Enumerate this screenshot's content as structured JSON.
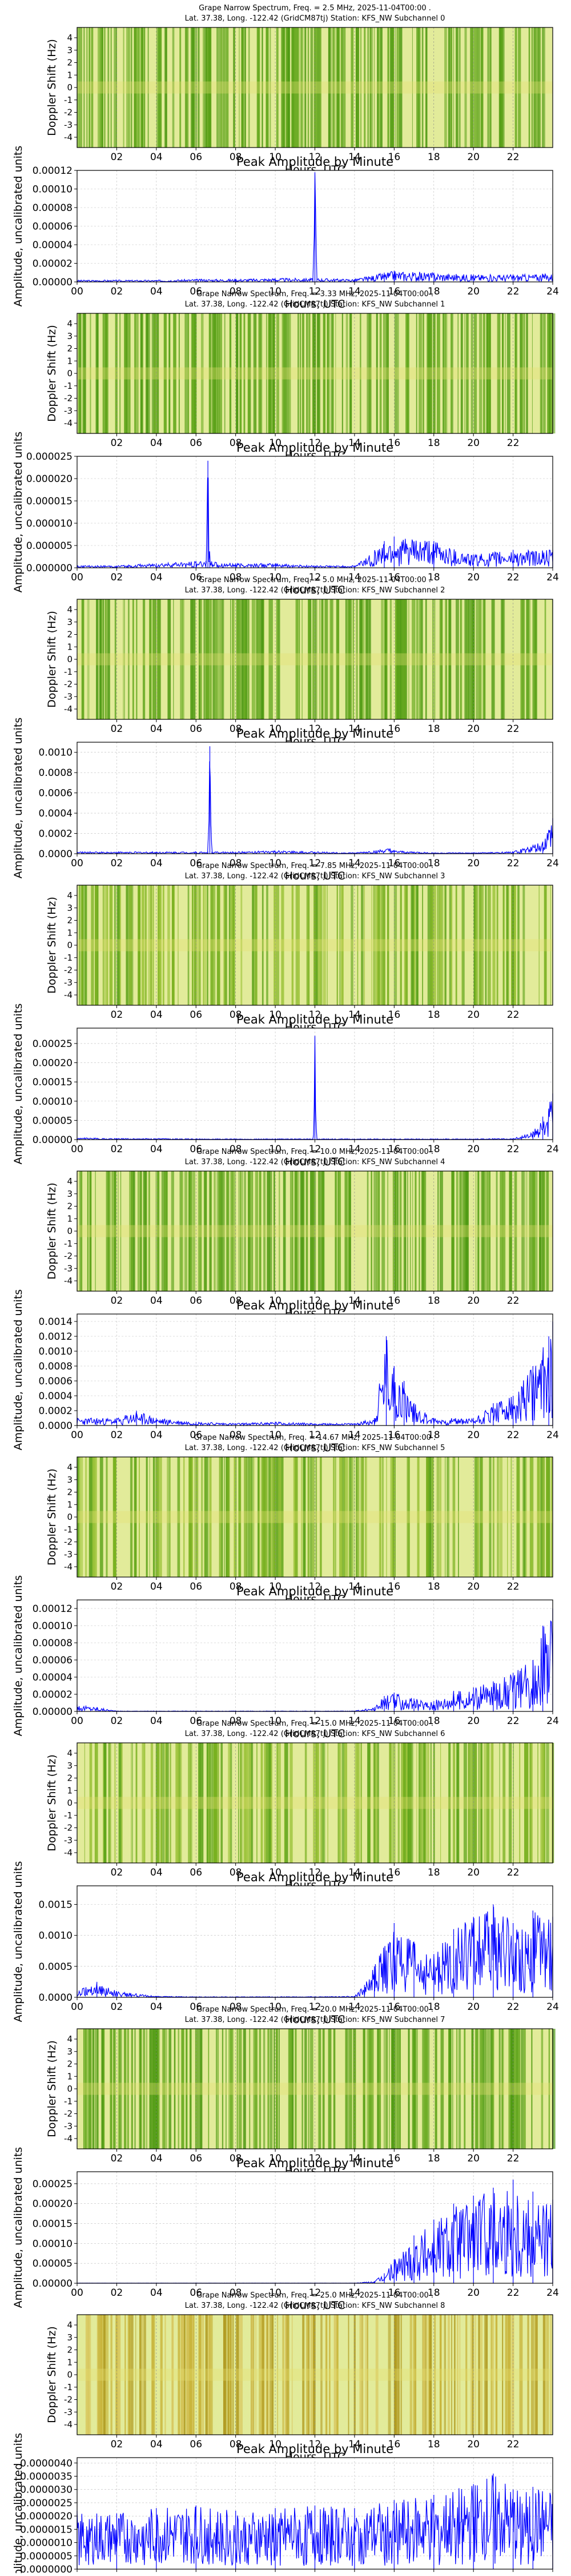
{
  "figure": {
    "shared": {
      "spectrogram_ylabel": "Doppler Shift (Hz)",
      "xlabel": "Hours, UTC",
      "amp_title": "Peak Amplitude by Minute",
      "amp_ylabel": "Amplitude, uncalibrated units",
      "spec_xticks": [
        "02",
        "04",
        "06",
        "08",
        "10",
        "12",
        "14",
        "16",
        "18",
        "20",
        "22"
      ],
      "amp_xticks": [
        "00",
        "02",
        "04",
        "06",
        "08",
        "10",
        "12",
        "14",
        "16",
        "18",
        "20",
        "22",
        "24"
      ],
      "spec_yticks": [
        "4",
        "3",
        "2",
        "1",
        "0",
        "-1",
        "-2",
        "-3",
        "-4"
      ],
      "colors": {
        "spec_green": "#5ba218",
        "spec_yellow": "#e6e070",
        "spec_bg": "#e2eb9a",
        "amp_line": "#0000ff",
        "grid": "#bbbbbb"
      }
    }
  },
  "chart_data": [
    {
      "type": "heatmap",
      "title_line1": "Grape Narrow Spectrum, Freq. = 2.5 MHz, 2025-11-04T00:00 .",
      "title_line2": "Lat.  37.38, Long. -122.42 (GridCM87tj) Station: KFS_NW Subchannel 0",
      "xlabel": "Hours, UTC",
      "ylabel": "Doppler Shift (Hz)",
      "xlim": [
        0,
        24
      ],
      "ylim": [
        -4,
        4
      ],
      "tint": "green"
    },
    {
      "type": "line",
      "title": "Peak Amplitude by Minute",
      "xlabel": "Hours, UTC",
      "ylabel": "Amplitude, uncalibrated units",
      "xlim": [
        0,
        24
      ],
      "ylim": [
        0,
        0.00012
      ],
      "yticks": [
        "0.00000",
        "0.00002",
        "0.00004",
        "0.00006",
        "0.00008",
        "0.00010",
        "0.00012"
      ],
      "x": [
        0,
        2,
        4,
        6,
        8,
        10,
        11.9,
        12,
        12.1,
        14,
        15.5,
        16,
        18,
        20,
        22,
        24
      ],
      "y": [
        2e-06,
        2e-06,
        2e-06,
        3e-06,
        3e-06,
        4e-06,
        4e-06,
        0.000118,
        4e-06,
        3e-06,
        1e-05,
        1.2e-05,
        1e-05,
        8e-06,
        8e-06,
        9e-06
      ]
    },
    {
      "type": "heatmap",
      "title_line1": "Grape Narrow Spectrum, Freq. = 3.33 MHz, 2025-11-04T00:00 .",
      "title_line2": "Lat.  37.38, Long. -122.42 (GridCM87tj) Station: KFS_NW Subchannel 1",
      "xlabel": "Hours, UTC",
      "ylabel": "Doppler Shift (Hz)",
      "xlim": [
        0,
        24
      ],
      "ylim": [
        -4,
        4
      ],
      "tint": "green"
    },
    {
      "type": "line",
      "title": "Peak Amplitude by Minute",
      "xlabel": "Hours, UTC",
      "ylabel": "Amplitude, uncalibrated units",
      "xlim": [
        0,
        24
      ],
      "ylim": [
        0,
        2.5e-05
      ],
      "yticks": [
        "0.000000",
        "0.000005",
        "0.000010",
        "0.000015",
        "0.000020",
        "0.000025"
      ],
      "x": [
        0,
        2,
        4,
        6,
        6.5,
        6.6,
        6.7,
        8,
        10,
        12,
        14,
        15.5,
        16,
        18,
        20,
        22,
        24
      ],
      "y": [
        5e-07,
        5e-07,
        1e-06,
        1.5e-06,
        1.5e-06,
        2.4e-05,
        1.5e-06,
        1e-06,
        1e-06,
        5e-07,
        5e-07,
        6e-06,
        7e-06,
        6e-06,
        3e-06,
        4e-06,
        4e-06
      ]
    },
    {
      "type": "heatmap",
      "title_line1": "Grape Narrow Spectrum, Freq. = 5.0 MHz, 2025-11-04T00:00 .",
      "title_line2": "Lat.  37.38, Long. -122.42 (GridCM87tj) Station: KFS_NW Subchannel 2",
      "xlabel": "Hours, UTC",
      "ylabel": "Doppler Shift (Hz)",
      "xlim": [
        0,
        24
      ],
      "ylim": [
        -4,
        4
      ],
      "tint": "green"
    },
    {
      "type": "line",
      "title": "Peak Amplitude by Minute",
      "xlabel": "Hours, UTC",
      "ylabel": "Amplitude, uncalibrated units",
      "xlim": [
        0,
        24
      ],
      "ylim": [
        0,
        0.0011
      ],
      "yticks": [
        "0.0000",
        "0.0002",
        "0.0004",
        "0.0006",
        "0.0008",
        "0.0010"
      ],
      "x": [
        0,
        2,
        4,
        6,
        6.6,
        6.7,
        6.8,
        8,
        10,
        12,
        14,
        15.8,
        16,
        18,
        20,
        22,
        23.5,
        24
      ],
      "y": [
        2e-05,
        2e-05,
        2e-05,
        2e-05,
        2e-05,
        0.00106,
        2e-05,
        2e-05,
        3e-05,
        2e-05,
        1e-05,
        5e-05,
        3e-05,
        1e-05,
        1e-05,
        2e-05,
        0.00012,
        0.00035
      ]
    },
    {
      "type": "heatmap",
      "title_line1": "Grape Narrow Spectrum, Freq. = 7.85 MHz, 2025-11-04T00:00 .",
      "title_line2": "Lat.  37.38, Long. -122.42 (GridCM87tj) Station: KFS_NW Subchannel 3",
      "xlabel": "Hours, UTC",
      "ylabel": "Doppler Shift (Hz)",
      "xlim": [
        0,
        24
      ],
      "ylim": [
        -4,
        4
      ],
      "tint": "mixed"
    },
    {
      "type": "line",
      "title": "Peak Amplitude by Minute",
      "xlabel": "Hours, UTC",
      "ylabel": "Amplitude, uncalibrated units",
      "xlim": [
        0,
        24
      ],
      "ylim": [
        0,
        0.00029
      ],
      "yticks": [
        "0.00000",
        "0.00005",
        "0.00010",
        "0.00015",
        "0.00020",
        "0.00025"
      ],
      "x": [
        0,
        2,
        4,
        6,
        8,
        10,
        11.9,
        12,
        12.1,
        14,
        16,
        18,
        20,
        22,
        23,
        23.5,
        24
      ],
      "y": [
        5e-06,
        3e-06,
        3e-06,
        2e-06,
        2e-06,
        2e-06,
        2e-06,
        0.00027,
        2e-06,
        2e-06,
        2e-06,
        2e-06,
        2e-06,
        3e-06,
        2e-05,
        6e-05,
        0.00012
      ]
    },
    {
      "type": "heatmap",
      "title_line1": "Grape Narrow Spectrum, Freq. = 10.0 MHz, 2025-11-04T00:00 .",
      "title_line2": "Lat.  37.38, Long. -122.42 (GridCM87tj) Station: KFS_NW Subchannel 4",
      "xlabel": "Hours, UTC",
      "ylabel": "Doppler Shift (Hz)",
      "xlim": [
        0,
        24
      ],
      "ylim": [
        -4,
        4
      ],
      "tint": "green"
    },
    {
      "type": "line",
      "title": "Peak Amplitude by Minute",
      "xlabel": "Hours, UTC",
      "ylabel": "Amplitude, uncalibrated units",
      "xlim": [
        0,
        24
      ],
      "ylim": [
        0,
        0.0015
      ],
      "yticks": [
        "0.0000",
        "0.0002",
        "0.0004",
        "0.0006",
        "0.0008",
        "0.0010",
        "0.0012",
        "0.0014"
      ],
      "x": [
        0,
        1,
        2,
        3,
        4,
        6,
        8,
        10,
        12,
        14,
        15,
        15.6,
        16,
        16.5,
        17,
        18,
        20,
        21,
        22,
        23,
        23.8,
        24
      ],
      "y": [
        0.0001,
        0.0001,
        0.0001,
        0.0002,
        0.0001,
        5e-05,
        3e-05,
        5e-05,
        3e-05,
        3e-05,
        0.0001,
        0.0012,
        0.0008,
        0.0006,
        0.0003,
        0.0001,
        0.0001,
        0.0003,
        0.0004,
        0.0008,
        0.0012,
        0.0014
      ]
    },
    {
      "type": "heatmap",
      "title_line1": "Grape Narrow Spectrum, Freq. = 14.67 MHz, 2025-11-04T00:00 .",
      "title_line2": "Lat.  37.38, Long. -122.42 (GridCM87tj) Station: KFS_NW Subchannel 5",
      "xlabel": "Hours, UTC",
      "ylabel": "Doppler Shift (Hz)",
      "xlim": [
        0,
        24
      ],
      "ylim": [
        -4,
        4
      ],
      "tint": "mixed"
    },
    {
      "type": "line",
      "title": "Peak Amplitude by Minute",
      "xlabel": "Hours, UTC",
      "ylabel": "Amplitude, uncalibrated units",
      "xlim": [
        0,
        24
      ],
      "ylim": [
        0,
        0.00013
      ],
      "yticks": [
        "0.00000",
        "0.00002",
        "0.00004",
        "0.00006",
        "0.00008",
        "0.00010",
        "0.00012"
      ],
      "x": [
        0,
        1,
        2,
        4,
        6,
        8,
        10,
        12,
        14,
        15,
        15.5,
        16,
        17,
        18,
        19,
        20,
        21,
        22,
        23,
        23.5,
        24
      ],
      "y": [
        8e-06,
        5e-06,
        5e-07,
        5e-07,
        5e-07,
        5e-07,
        5e-07,
        5e-07,
        5e-07,
        5e-06,
        1.8e-05,
        2.2e-05,
        1.5e-05,
        1.2e-05,
        2.4e-05,
        2.8e-05,
        3.5e-05,
        4.5e-05,
        6e-05,
        0.0001,
        0.00012
      ]
    },
    {
      "type": "heatmap",
      "title_line1": "Grape Narrow Spectrum, Freq. = 15.0 MHz, 2025-11-04T00:00 .",
      "title_line2": "Lat.  37.38, Long. -122.42 (GridCM87tj) Station: KFS_NW Subchannel 6",
      "xlabel": "Hours, UTC",
      "ylabel": "Doppler Shift (Hz)",
      "xlim": [
        0,
        24
      ],
      "ylim": [
        -4,
        4
      ],
      "tint": "mixed"
    },
    {
      "type": "line",
      "title": "Peak Amplitude by Minute",
      "xlabel": "Hours, UTC",
      "ylabel": "Amplitude, uncalibrated units",
      "xlim": [
        0,
        24
      ],
      "ylim": [
        0,
        0.0018
      ],
      "yticks": [
        "0.0000",
        "0.0005",
        "0.0010",
        "0.0015"
      ],
      "x": [
        0,
        1,
        2,
        4,
        6,
        8,
        10,
        12,
        14,
        14.5,
        15,
        16,
        17,
        18,
        19,
        20,
        21,
        22,
        23,
        24
      ],
      "y": [
        0.0001,
        0.00025,
        0.0001,
        2e-05,
        1e-05,
        1e-05,
        1e-05,
        1e-05,
        2e-05,
        0.0002,
        0.0005,
        0.0012,
        0.0009,
        0.0007,
        0.0011,
        0.0013,
        0.0015,
        0.0012,
        0.0014,
        0.0013
      ]
    },
    {
      "type": "heatmap",
      "title_line1": "Grape Narrow Spectrum, Freq. = 20.0 MHz, 2025-11-04T00:00 .",
      "title_line2": "Lat.  37.38, Long. -122.42 (GridCM87tj) Station: KFS_NW Subchannel 7",
      "xlabel": "Hours, UTC",
      "ylabel": "Doppler Shift (Hz)",
      "xlim": [
        0,
        24
      ],
      "ylim": [
        -4,
        4
      ],
      "tint": "green"
    },
    {
      "type": "line",
      "title": "Peak Amplitude by Minute",
      "xlabel": "Hours, UTC",
      "ylabel": "Amplitude, uncalibrated units",
      "xlim": [
        0,
        24
      ],
      "ylim": [
        0,
        0.00028
      ],
      "yticks": [
        "0.00000",
        "0.00005",
        "0.00010",
        "0.00015",
        "0.00020",
        "0.00025"
      ],
      "x": [
        0,
        2,
        4,
        6,
        8,
        10,
        12,
        14,
        15,
        15.5,
        16,
        17,
        18,
        19,
        20,
        21,
        22,
        23,
        24
      ],
      "y": [
        5e-07,
        5e-07,
        5e-07,
        5e-07,
        5e-07,
        5e-07,
        5e-07,
        5e-07,
        5e-06,
        2.5e-05,
        6e-05,
        0.00012,
        0.00016,
        0.0002,
        0.00022,
        0.00024,
        0.00026,
        0.00023,
        0.00021
      ]
    },
    {
      "type": "heatmap",
      "title_line1": "Grape Narrow Spectrum, Freq. = 25.0 MHz, 2025-11-04T00:00 .",
      "title_line2": "Lat.  37.38, Long. -122.42 (GridCM87tj) Station: KFS_NW Subchannel 8",
      "xlabel": "Hours, UTC",
      "ylabel": "Doppler Shift (Hz)",
      "xlim": [
        0,
        24
      ],
      "ylim": [
        -4,
        4
      ],
      "tint": "yellow"
    },
    {
      "type": "line",
      "title": "Peak Amplitude by Minute",
      "xlabel": "Hours, UTC",
      "ylabel": "Amplitude, uncalibrated units",
      "xlim": [
        0,
        24
      ],
      "ylim": [
        0,
        4.2e-06
      ],
      "yticks": [
        "0.0000000",
        "0.0000005",
        "0.0000010",
        "0.0000015",
        "0.0000020",
        "0.0000025",
        "0.0000030",
        "0.0000035",
        "0.0000040"
      ],
      "x": [
        0,
        2,
        4,
        6,
        8,
        10,
        12,
        14,
        16,
        18,
        20,
        21,
        22,
        23,
        24
      ],
      "y": [
        2.2e-06,
        2.1e-06,
        2.3e-06,
        2.4e-06,
        2.2e-06,
        2.3e-06,
        2.4e-06,
        2.3e-06,
        2.6e-06,
        2.8e-06,
        3.2e-06,
        3.6e-06,
        3e-06,
        3.1e-06,
        2.9e-06
      ]
    }
  ]
}
